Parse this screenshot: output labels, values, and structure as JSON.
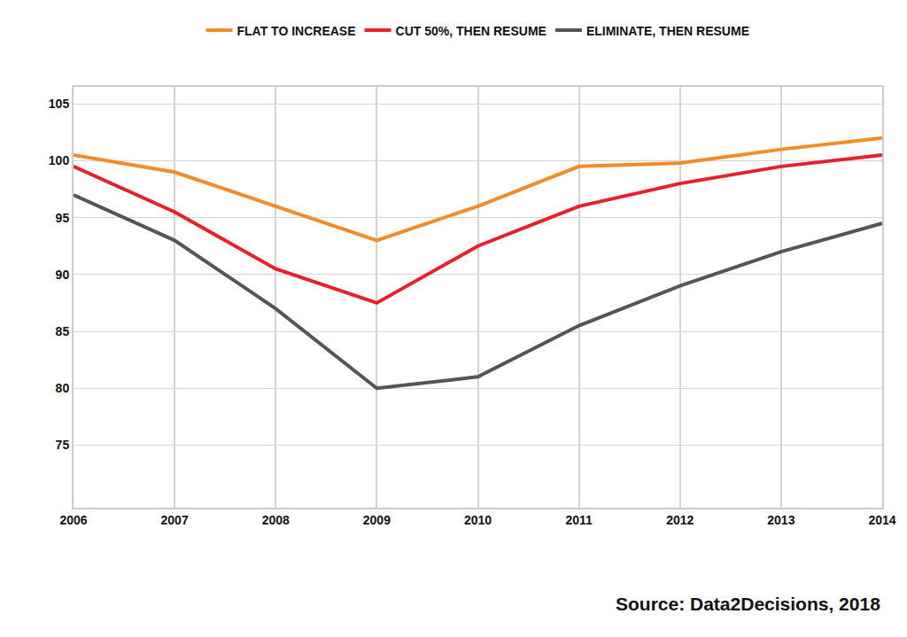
{
  "chart_data": {
    "type": "line",
    "categories": [
      "2006",
      "2007",
      "2008",
      "2009",
      "2010",
      "2011",
      "2012",
      "2013",
      "2014"
    ],
    "series": [
      {
        "name": "FLAT TO INCREASE",
        "color": "#f28c28",
        "values": [
          100.5,
          99,
          96,
          93,
          96,
          99.5,
          99.8,
          101,
          102
        ]
      },
      {
        "name": "CUT 50%, THEN RESUME",
        "color": "#e8202a",
        "values": [
          99.5,
          95.5,
          90.5,
          87.5,
          92.5,
          96,
          98,
          99.5,
          100.5
        ]
      },
      {
        "name": "ELIMINATE, THEN RESUME",
        "color": "#555555",
        "values": [
          97,
          93,
          87,
          80,
          81,
          85.5,
          89,
          92,
          94.5
        ]
      }
    ],
    "ylim": [
      69.5,
      106.5
    ],
    "yticks": [
      75,
      80,
      85,
      90,
      95,
      100,
      105
    ],
    "grid": true,
    "legend": "top",
    "annotations": [
      "Source: Data2Decisions, 2018"
    ]
  }
}
